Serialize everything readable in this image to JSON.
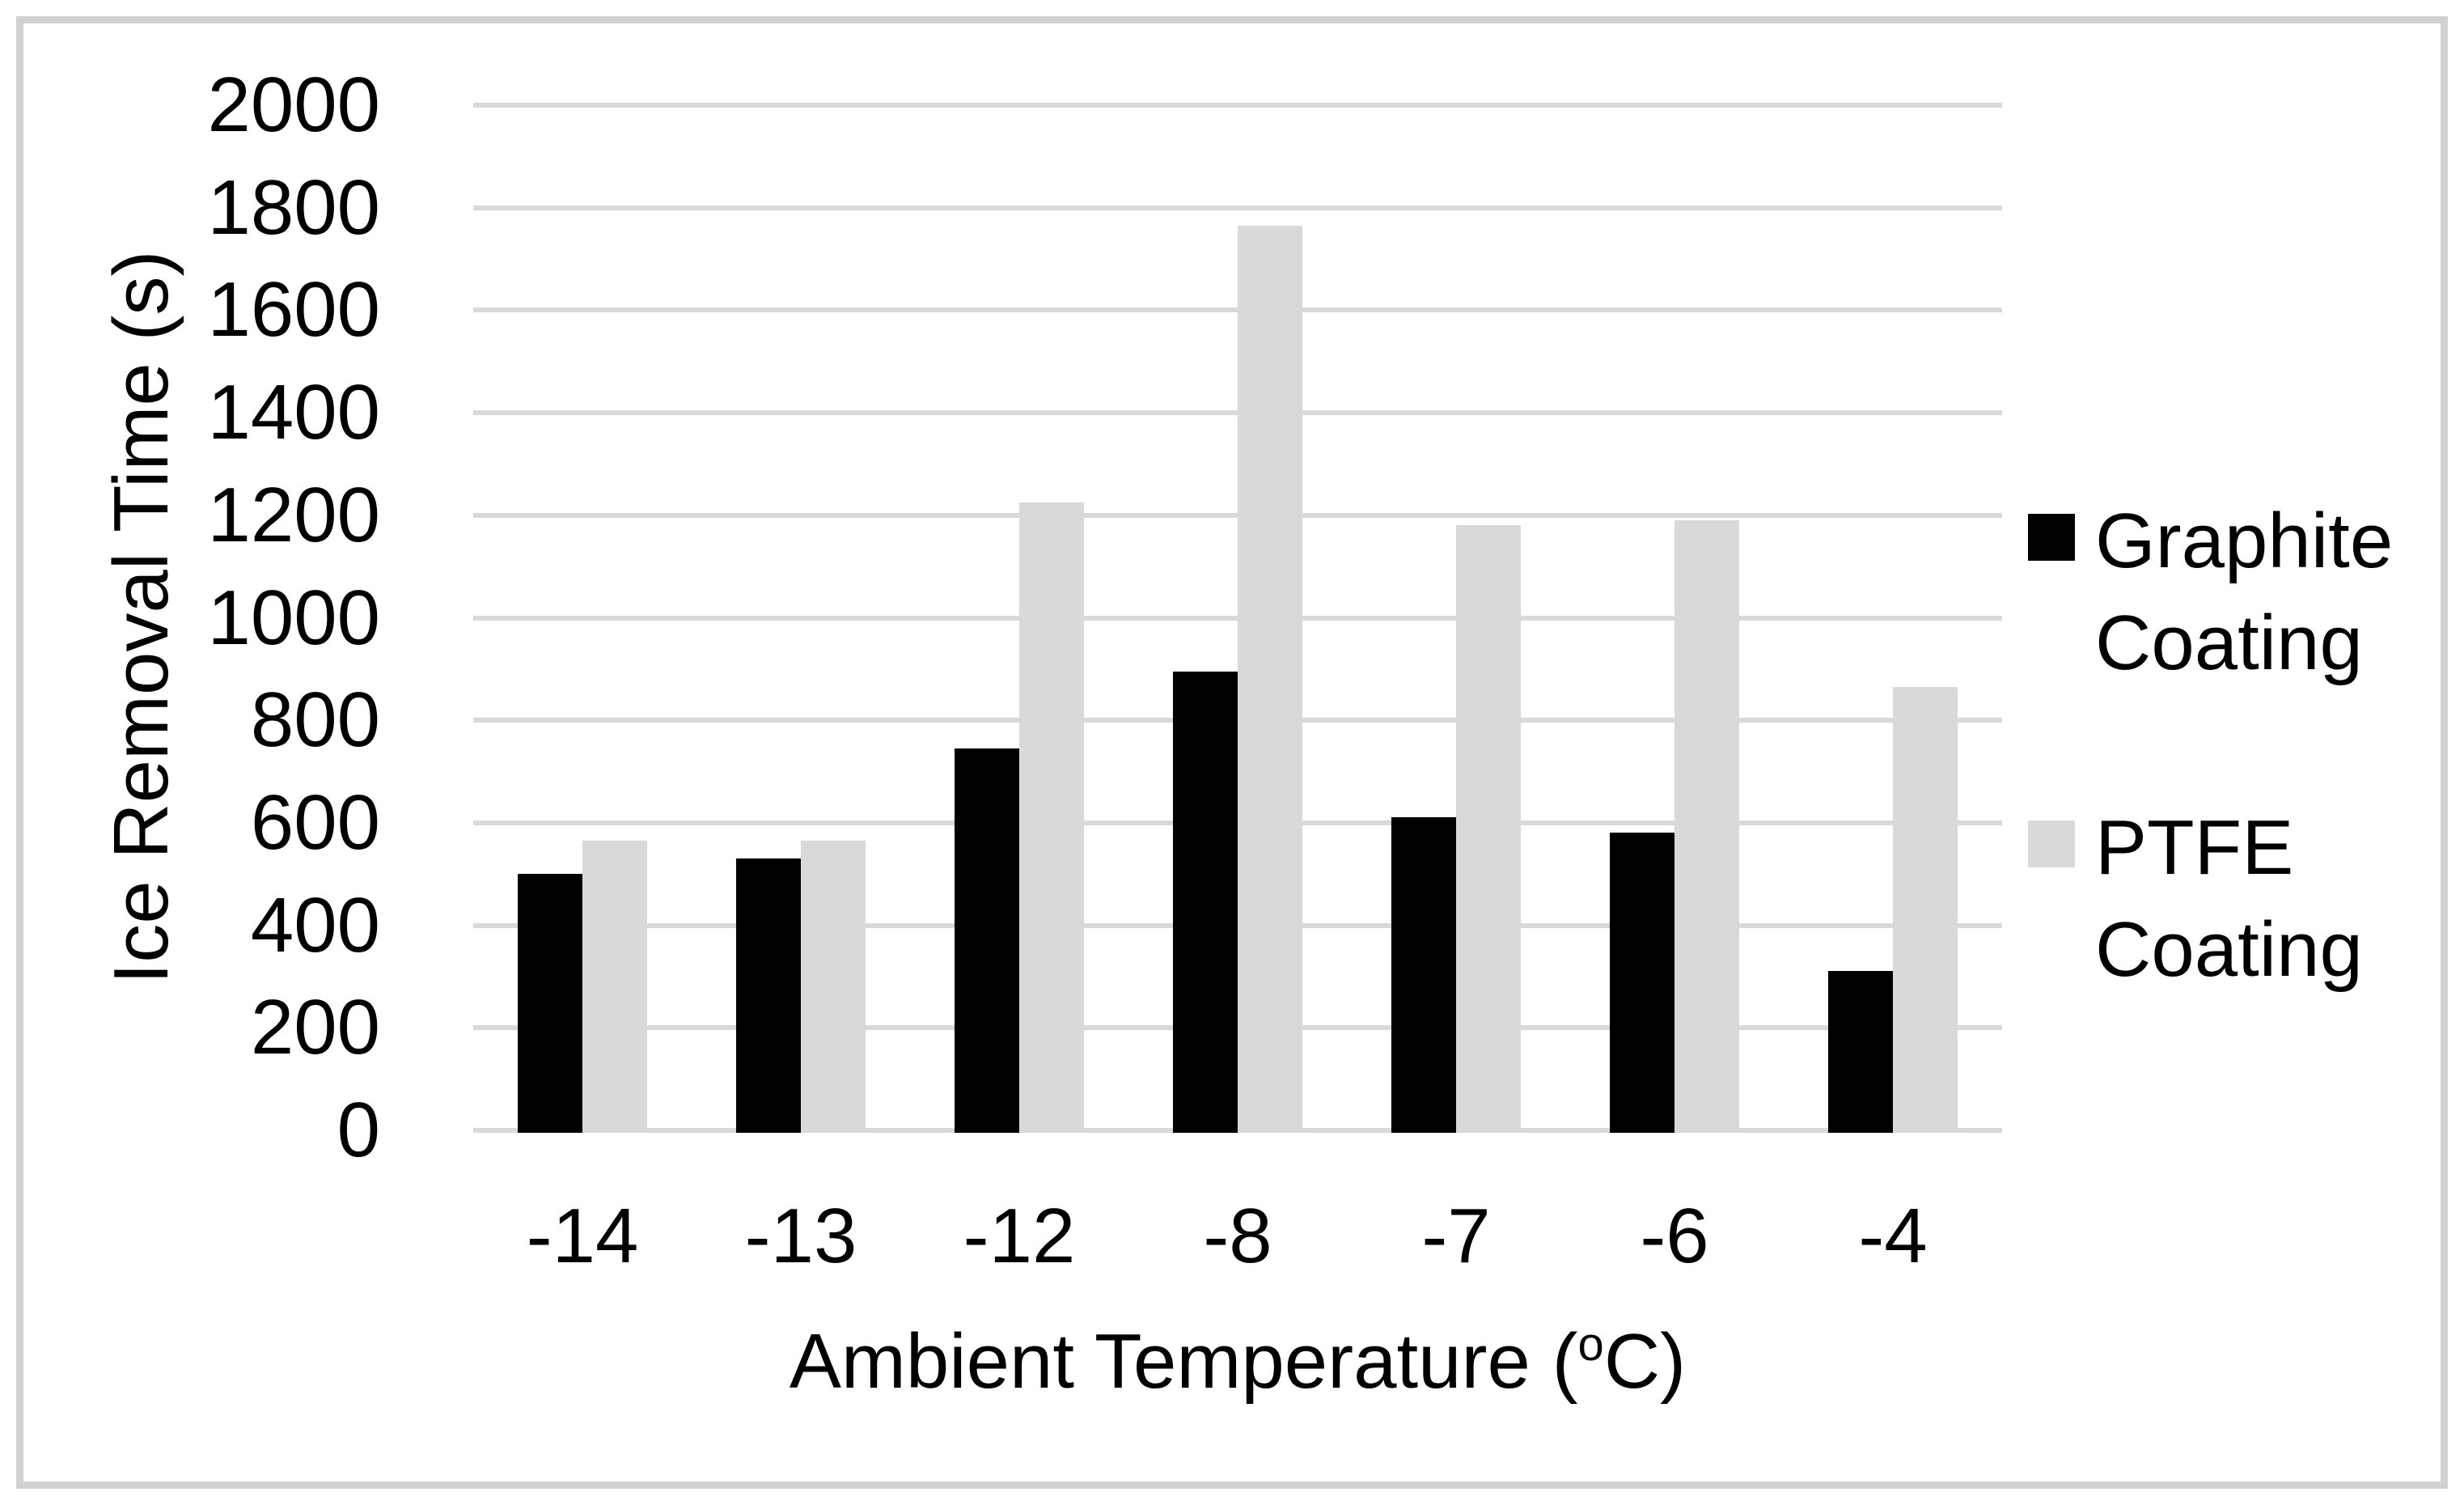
{
  "chart_data": {
    "type": "bar",
    "title": "",
    "categories": [
      "-14",
      "-13",
      "-12",
      "-8",
      "-7",
      "-6",
      "-4"
    ],
    "series": [
      {
        "name": "Graphite Coating",
        "color": "#000000",
        "values": [
          505,
          535,
          750,
          900,
          615,
          585,
          315
        ]
      },
      {
        "name": "PTFE Coating",
        "color": "#d9d9d9",
        "values": [
          570,
          570,
          1230,
          1770,
          1185,
          1195,
          870
        ]
      }
    ],
    "xlabel": "Ambient Temperature (°C)",
    "ylabel": "Ice Removal Time (s)",
    "ylim": [
      0,
      2000
    ],
    "ytick_step": 200,
    "grid": true,
    "gridline_color": "#d9d9d9",
    "legend_position": "right"
  },
  "y_axis": {
    "title": "Ice Removal Time (s)",
    "tick_labels": [
      "0",
      "200",
      "400",
      "600",
      "800",
      "1000",
      "1200",
      "1400",
      "1600",
      "1800",
      "2000"
    ]
  },
  "x_axis": {
    "title_prefix": "Ambient Temperature (",
    "title_sup": "o",
    "title_suffix": "C)",
    "labels": [
      "-14",
      "-13",
      "-12",
      "-8",
      "-7",
      "-6",
      "-4"
    ]
  },
  "legend": {
    "items": [
      {
        "line1": "Graphite",
        "line2": "Coating",
        "color": "#000000"
      },
      {
        "line1": "PTFE",
        "line2": "Coating",
        "color": "#d9d9d9"
      }
    ]
  },
  "figure": {
    "background": "#ffffff",
    "border_color": "#d2d2d2"
  }
}
